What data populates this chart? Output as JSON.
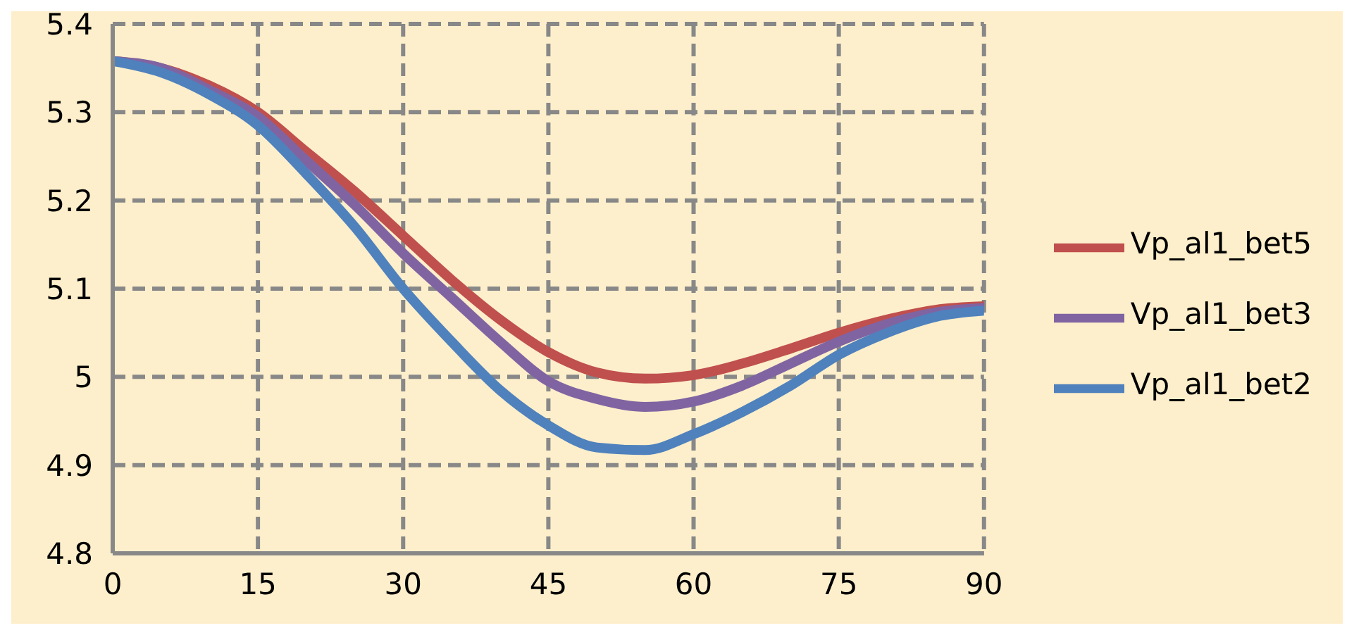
{
  "chart_data": {
    "type": "line",
    "x": [
      0,
      5,
      10,
      15,
      20,
      25,
      30,
      35,
      40,
      45,
      50,
      55,
      60,
      65,
      70,
      75,
      80,
      85,
      90
    ],
    "series": [
      {
        "name": "Vp_al1_bet5",
        "color": "#c0504d",
        "values": [
          5.358,
          5.35,
          5.33,
          5.3,
          5.255,
          5.21,
          5.16,
          5.11,
          5.065,
          5.028,
          5.005,
          4.998,
          5.002,
          5.015,
          5.032,
          5.05,
          5.065,
          5.076,
          5.08
        ]
      },
      {
        "name": "Vp_al1_bet3",
        "color": "#8064a2",
        "values": [
          5.358,
          5.35,
          5.325,
          5.295,
          5.245,
          5.195,
          5.14,
          5.09,
          5.04,
          4.995,
          4.975,
          4.966,
          4.972,
          4.99,
          5.015,
          5.04,
          5.06,
          5.073,
          5.078
        ]
      },
      {
        "name": "Vp_al1_bet2",
        "color": "#4f81bd",
        "values": [
          5.358,
          5.345,
          5.32,
          5.285,
          5.23,
          5.17,
          5.1,
          5.04,
          4.985,
          4.945,
          4.92,
          4.917,
          4.935,
          4.96,
          4.99,
          5.025,
          5.05,
          5.068,
          5.075
        ]
      }
    ],
    "xlim": [
      0,
      90
    ],
    "xticks": [
      0,
      15,
      30,
      45,
      60,
      75,
      90
    ],
    "ylim": [
      4.8,
      5.4
    ],
    "yticks": [
      4.8,
      4.9,
      5,
      5.1,
      5.2,
      5.3,
      5.4
    ],
    "grid": true,
    "legend": "right",
    "marker": "none",
    "line_style": "solid"
  }
}
